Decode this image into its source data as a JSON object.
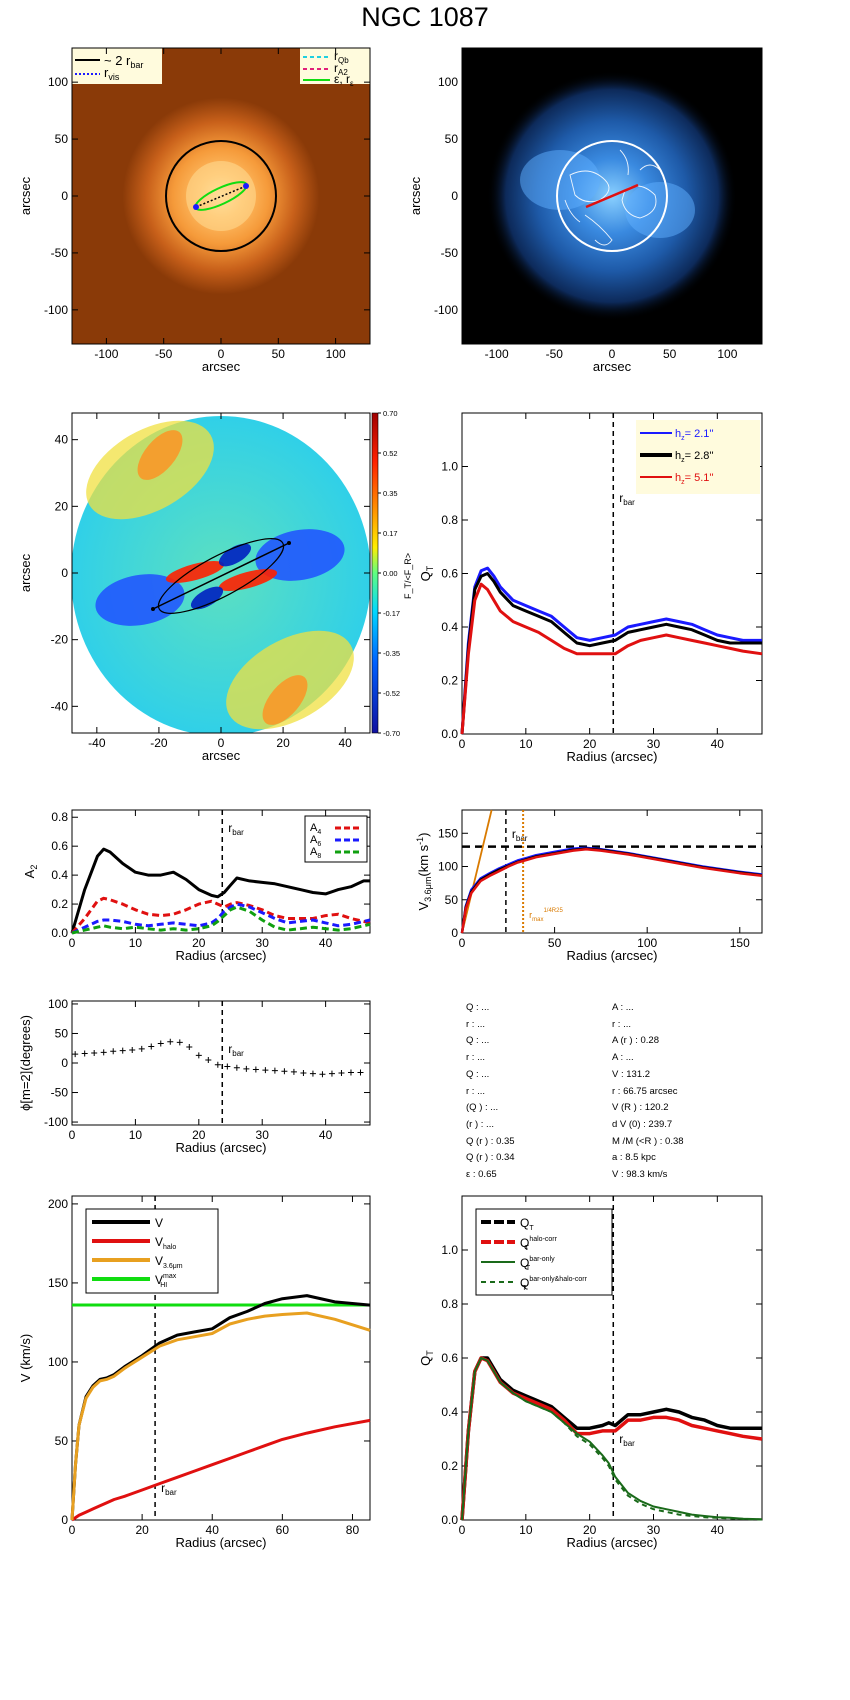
{
  "title": "NGC 1087",
  "colors": {
    "black": "#000000",
    "blue": "#1a1aff",
    "red": "#e01010",
    "green": "#10a010",
    "orange": "#e8a020",
    "dark_orange": "#d97a00",
    "cyan": "#20d0e0",
    "magenta": "#e0207a",
    "lime": "#10dd10",
    "dark_green": "#1a6a1a",
    "legend_bg": "#fffbdd"
  },
  "chart_data": [
    {
      "id": "p1",
      "type": "image",
      "xlabel": "arcsec",
      "ylabel": "arcsec",
      "xlim": [
        -130,
        130
      ],
      "ylim": [
        -130,
        130
      ],
      "xticks": [
        "-100",
        "-50",
        "0",
        "50",
        "100"
      ],
      "yticks": [
        "-100",
        "-50",
        "0",
        "50",
        "100"
      ],
      "legend_left": [
        "~ 2 r",
        "r"
      ],
      "legend_left_sub": [
        "bar",
        "vis"
      ],
      "legend_right": [
        "r",
        "r",
        "ε, r"
      ],
      "legend_right_sub": [
        "Qb",
        "A2",
        "ε"
      ],
      "circle_radius": 48,
      "bar_ends": [
        [
          -22,
          -10
        ],
        [
          22,
          10
        ]
      ]
    },
    {
      "id": "p2",
      "type": "image",
      "xlabel": "arcsec",
      "ylabel": "arcsec",
      "xlim": [
        -130,
        130
      ],
      "ylim": [
        -130,
        130
      ],
      "xticks": [
        "-100",
        "-50",
        "0",
        "50",
        "100"
      ],
      "yticks": [
        "-100",
        "-50",
        "0",
        "50",
        "100"
      ],
      "circle_radius": 48
    },
    {
      "id": "p3",
      "type": "heatmap",
      "xlabel": "arcsec",
      "ylabel": "arcsec",
      "xlim": [
        -48,
        48
      ],
      "ylim": [
        -48,
        48
      ],
      "xticks": [
        "-40",
        "-20",
        "0",
        "20",
        "40"
      ],
      "yticks": [
        "-40",
        "-20",
        "0",
        "20",
        "40"
      ],
      "colorbar_ticks": [
        "0.70",
        "0.52",
        "0.35",
        "0.17",
        "0.00",
        "-0.17",
        "-0.35",
        "-0.52",
        "-0.70"
      ],
      "colorbar_label": "F_T/<F_R>"
    },
    {
      "id": "p4",
      "type": "line",
      "xlabel": "Radius (arcsec)",
      "ylabel": "Q",
      "ylabel_sub": "T",
      "xlim": [
        0,
        47
      ],
      "ylim": [
        0,
        1.2
      ],
      "xticks": [
        0,
        10,
        20,
        30,
        40
      ],
      "yticks": [
        "0.0",
        "0.2",
        "0.4",
        "0.6",
        "0.8",
        "1.0"
      ],
      "rbar": 23.7,
      "rbar_label": "r",
      "rbar_label_sub": "bar",
      "legend": [
        {
          "label": "h = 2.1''",
          "val": "2.1''"
        },
        {
          "label": "h = 2.8''",
          "val": "2.8''"
        },
        {
          "label": "h = 5.1''",
          "val": "5.1''"
        }
      ],
      "x": [
        0,
        1,
        2,
        3,
        4,
        5,
        6,
        8,
        10,
        12,
        14,
        16,
        18,
        20,
        22,
        24,
        26,
        28,
        30,
        32,
        34,
        36,
        38,
        40,
        42,
        44,
        47
      ],
      "series": [
        {
          "name": "h = 2.1''",
          "values": [
            0,
            0.34,
            0.55,
            0.61,
            0.62,
            0.59,
            0.55,
            0.5,
            0.48,
            0.46,
            0.44,
            0.4,
            0.36,
            0.35,
            0.36,
            0.37,
            0.4,
            0.41,
            0.42,
            0.43,
            0.42,
            0.41,
            0.39,
            0.37,
            0.36,
            0.35,
            0.35
          ]
        },
        {
          "name": "h = 2.8''",
          "values": [
            0,
            0.32,
            0.54,
            0.59,
            0.6,
            0.57,
            0.53,
            0.48,
            0.46,
            0.44,
            0.42,
            0.38,
            0.34,
            0.33,
            0.34,
            0.35,
            0.38,
            0.39,
            0.4,
            0.41,
            0.4,
            0.39,
            0.37,
            0.35,
            0.34,
            0.34,
            0.34
          ]
        },
        {
          "name": "h = 5.1''",
          "values": [
            0,
            0.3,
            0.5,
            0.56,
            0.54,
            0.5,
            0.46,
            0.42,
            0.4,
            0.38,
            0.35,
            0.32,
            0.3,
            0.3,
            0.3,
            0.3,
            0.33,
            0.35,
            0.36,
            0.37,
            0.36,
            0.35,
            0.34,
            0.33,
            0.32,
            0.31,
            0.3
          ]
        }
      ]
    },
    {
      "id": "p5",
      "type": "line",
      "xlabel": "Radius (arcsec)",
      "ylabel": "A",
      "ylabel_sub": "2",
      "xlim": [
        0,
        47
      ],
      "ylim": [
        0,
        0.85
      ],
      "xticks": [
        0,
        10,
        20,
        30,
        40
      ],
      "yticks": [
        "0.0",
        "0.2",
        "0.4",
        "0.6",
        "0.8"
      ],
      "rbar": 23.7,
      "rbar_label": "r",
      "rbar_label_sub": "bar",
      "legend": [
        {
          "label": "A",
          "sub": "4"
        },
        {
          "label": "A",
          "sub": "6"
        },
        {
          "label": "A",
          "sub": "8"
        }
      ],
      "x": [
        0,
        2,
        4,
        5,
        6,
        8,
        10,
        12,
        14,
        16,
        18,
        20,
        22,
        23,
        24,
        25,
        26,
        28,
        30,
        32,
        34,
        36,
        38,
        40,
        42,
        44,
        46,
        47
      ],
      "series": [
        {
          "name": "A2",
          "values": [
            0,
            0.3,
            0.53,
            0.58,
            0.56,
            0.48,
            0.42,
            0.4,
            0.4,
            0.42,
            0.37,
            0.3,
            0.26,
            0.25,
            0.28,
            0.33,
            0.38,
            0.36,
            0.35,
            0.34,
            0.32,
            0.3,
            0.28,
            0.27,
            0.3,
            0.32,
            0.36,
            0.36
          ]
        },
        {
          "name": "A4",
          "values": [
            0,
            0.1,
            0.22,
            0.24,
            0.23,
            0.2,
            0.16,
            0.13,
            0.12,
            0.13,
            0.16,
            0.2,
            0.22,
            0.2,
            0.18,
            0.2,
            0.21,
            0.19,
            0.16,
            0.12,
            0.1,
            0.1,
            0.1,
            0.12,
            0.13,
            0.1,
            0.08,
            0.07
          ]
        },
        {
          "name": "A6",
          "values": [
            0,
            0.04,
            0.08,
            0.09,
            0.09,
            0.08,
            0.06,
            0.05,
            0.06,
            0.07,
            0.06,
            0.05,
            0.07,
            0.1,
            0.15,
            0.18,
            0.2,
            0.18,
            0.14,
            0.1,
            0.07,
            0.08,
            0.09,
            0.07,
            0.05,
            0.06,
            0.08,
            0.09
          ]
        },
        {
          "name": "A8",
          "values": [
            0,
            0.02,
            0.04,
            0.05,
            0.04,
            0.03,
            0.04,
            0.03,
            0.02,
            0.03,
            0.02,
            0.03,
            0.05,
            0.08,
            0.12,
            0.16,
            0.18,
            0.15,
            0.09,
            0.04,
            0.02,
            0.03,
            0.04,
            0.03,
            0.02,
            0.03,
            0.05,
            0.06
          ]
        }
      ]
    },
    {
      "id": "p6",
      "type": "line",
      "xlabel": "Radius (arcsec)",
      "ylabel": "V",
      "ylabel_sub": "3.6μm",
      "ylabel_tail": "(km s",
      "ylabel_sup": "-1",
      "xlim": [
        0,
        162
      ],
      "ylim": [
        0,
        185
      ],
      "xticks": [
        0,
        50,
        100,
        150
      ],
      "yticks": [
        "0",
        "50",
        "100",
        "150"
      ],
      "rbar": 23.7,
      "rbar_label": "r",
      "rbar_label_sub": "bar",
      "rmax_x": 33,
      "rmax_label": "r",
      "rmax_sub": "max",
      "rmax_sup": "1/4R25",
      "vhline": 130,
      "x": [
        0,
        2,
        5,
        10,
        15,
        20,
        25,
        30,
        35,
        40,
        50,
        60,
        67,
        75,
        90,
        110,
        130,
        150,
        162
      ],
      "series": [
        {
          "name": "blue",
          "values": [
            0,
            40,
            65,
            82,
            90,
            97,
            103,
            109,
            113,
            117,
            122,
            127,
            128,
            126,
            120,
            110,
            100,
            92,
            88
          ]
        },
        {
          "name": "black",
          "values": [
            0,
            38,
            62,
            80,
            88,
            95,
            101,
            107,
            111,
            115,
            120,
            125,
            127,
            125,
            119,
            109,
            99,
            91,
            87
          ]
        },
        {
          "name": "red",
          "values": [
            0,
            36,
            60,
            78,
            86,
            93,
            100,
            106,
            110,
            114,
            119,
            124,
            126,
            124,
            118,
            108,
            98,
            90,
            86
          ]
        }
      ],
      "orange_line": {
        "x": [
          0,
          16
        ],
        "y": [
          0,
          185
        ]
      }
    },
    {
      "id": "p7",
      "type": "scatter",
      "xlabel": "Radius (arcsec)",
      "ylabel": "ϕ[m=2](degrees)",
      "xlim": [
        0,
        47
      ],
      "ylim": [
        -105,
        105
      ],
      "xticks": [
        0,
        10,
        20,
        30,
        40
      ],
      "yticks": [
        "-100",
        "-50",
        "0",
        "50",
        "100"
      ],
      "rbar": 23.7,
      "rbar_label": "r",
      "rbar_label_sub": "bar",
      "x": [
        0.5,
        2,
        3.5,
        5,
        6.5,
        8,
        9.5,
        11,
        12.5,
        14,
        15.5,
        17,
        18.5,
        20,
        21.5,
        23,
        24.5,
        26,
        27.5,
        29,
        30.5,
        32,
        33.5,
        35,
        36.5,
        38,
        39.5,
        41,
        42.5,
        44,
        45.5
      ],
      "values": [
        15,
        16,
        17,
        18,
        20,
        21,
        22,
        24,
        28,
        33,
        36,
        35,
        27,
        13,
        5,
        -3,
        -6,
        -8,
        -10,
        -11,
        -12,
        -13,
        -14,
        -15,
        -17,
        -18,
        -19,
        -18,
        -17,
        -16,
        -16
      ]
    },
    {
      "id": "p8",
      "type": "line",
      "xlabel": "Radius (arcsec)",
      "ylabel": "V (km/s)",
      "xlim": [
        0,
        85
      ],
      "ylim": [
        0,
        205
      ],
      "xticks": [
        0,
        20,
        40,
        60,
        80
      ],
      "yticks": [
        "0",
        "50",
        "100",
        "150",
        "200"
      ],
      "rbar": 23.7,
      "rbar_label": "r",
      "rbar_label_sub": "bar",
      "legend": [
        {
          "label": "V",
          "sub": "",
          "sup": ""
        },
        {
          "label": "V",
          "sub": "halo",
          "sup": ""
        },
        {
          "label": "V",
          "sub": "3.6μm",
          "sup": ""
        },
        {
          "label": "V",
          "sub": "HI",
          "sup": "max"
        }
      ],
      "x": [
        0,
        1,
        2,
        4,
        6,
        8,
        10,
        12,
        15,
        20,
        25,
        30,
        35,
        40,
        45,
        50,
        55,
        60,
        67,
        75,
        85
      ],
      "series": [
        {
          "name": "V",
          "values": [
            0,
            35,
            60,
            78,
            85,
            89,
            90,
            92,
            97,
            104,
            112,
            117,
            119,
            121,
            128,
            132,
            137,
            140,
            142,
            138,
            136
          ]
        },
        {
          "name": "V halo",
          "values": [
            0,
            1.5,
            3,
            5,
            7,
            9,
            11,
            13,
            15,
            19,
            23,
            27,
            31,
            35,
            39,
            43,
            47,
            51,
            55,
            59,
            63
          ]
        },
        {
          "name": "V 3.6μm",
          "values": [
            0,
            35,
            60,
            77,
            84,
            88,
            89,
            91,
            96,
            103,
            110,
            114,
            116,
            118,
            124,
            127,
            129,
            130,
            131,
            127,
            120
          ]
        }
      ],
      "hline": 136
    },
    {
      "id": "p9",
      "type": "line",
      "xlabel": "Radius (arcsec)",
      "ylabel": "Q",
      "ylabel_sub": "T",
      "xlim": [
        0,
        47
      ],
      "ylim": [
        0,
        1.2
      ],
      "xticks": [
        0,
        10,
        20,
        30,
        40
      ],
      "yticks": [
        "0.0",
        "0.2",
        "0.4",
        "0.6",
        "0.8",
        "1.0"
      ],
      "rbar": 23.7,
      "rbar_label": "r",
      "rbar_label_sub": "bar",
      "legend": [
        {
          "label": "Q",
          "sub": "T",
          "sup": ""
        },
        {
          "label": "Q",
          "sub": "T",
          "sup": "halo-corr"
        },
        {
          "label": "Q",
          "sub": "T",
          "sup": "bar-only"
        },
        {
          "label": "Q",
          "sub": "T",
          "sup": "bar-only&halo-corr"
        }
      ],
      "x": [
        0,
        1,
        2,
        3,
        4,
        5,
        6,
        8,
        10,
        12,
        14,
        16,
        18,
        20,
        22,
        23,
        24,
        26,
        28,
        30,
        32,
        34,
        36,
        38,
        40,
        42,
        44,
        47
      ],
      "series": [
        {
          "name": "QT",
          "values": [
            0,
            0.33,
            0.55,
            0.6,
            0.6,
            0.56,
            0.52,
            0.48,
            0.46,
            0.44,
            0.42,
            0.38,
            0.34,
            0.34,
            0.35,
            0.36,
            0.35,
            0.39,
            0.39,
            0.4,
            0.41,
            0.4,
            0.38,
            0.37,
            0.35,
            0.34,
            0.34,
            0.34
          ]
        },
        {
          "name": "QT halo-corr",
          "values": [
            0,
            0.33,
            0.55,
            0.6,
            0.59,
            0.55,
            0.51,
            0.47,
            0.45,
            0.43,
            0.41,
            0.37,
            0.32,
            0.32,
            0.33,
            0.33,
            0.33,
            0.37,
            0.37,
            0.38,
            0.38,
            0.37,
            0.35,
            0.34,
            0.33,
            0.32,
            0.31,
            0.3
          ]
        },
        {
          "name": "QT bar-only",
          "values": [
            0,
            0.33,
            0.55,
            0.6,
            0.59,
            0.55,
            0.51,
            0.47,
            0.44,
            0.42,
            0.4,
            0.36,
            0.32,
            0.29,
            0.24,
            0.21,
            0.16,
            0.1,
            0.07,
            0.05,
            0.04,
            0.03,
            0.02,
            0.015,
            0.01,
            0.008,
            0.005,
            0.003
          ]
        },
        {
          "name": "QT bar-only&halo-corr",
          "values": [
            0,
            0.33,
            0.55,
            0.6,
            0.59,
            0.55,
            0.51,
            0.47,
            0.44,
            0.42,
            0.4,
            0.36,
            0.31,
            0.28,
            0.23,
            0.2,
            0.15,
            0.09,
            0.06,
            0.04,
            0.03,
            0.02,
            0.015,
            0.01,
            0.008,
            0.006,
            0.004,
            0.002
          ]
        }
      ]
    }
  ],
  "params_left": [
    "Q  : ...",
    "r   : ...",
    "Q         : ...",
    "r         : ...",
    "Q         : ...",
    "r         : ...",
    "(Q             ) : ...",
    "(r                ) : ...",
    "Q (r   ) :  0.35",
    "Q        (r   ) :  0.34",
    "ε :  0.65"
  ],
  "params_right": [
    "A       : ...",
    "r    : ...",
    "A (r   ) :  0.28",
    "A       : ...",
    "V       :  131.2",
    "r       :  66.75 arcsec",
    "V      (R   ) :  120.2",
    "d V      (0) :  239.7",
    "M /M (<R   ) :  0.38",
    "a :  8.5 kpc",
    "V  :  98.3 km/s"
  ]
}
